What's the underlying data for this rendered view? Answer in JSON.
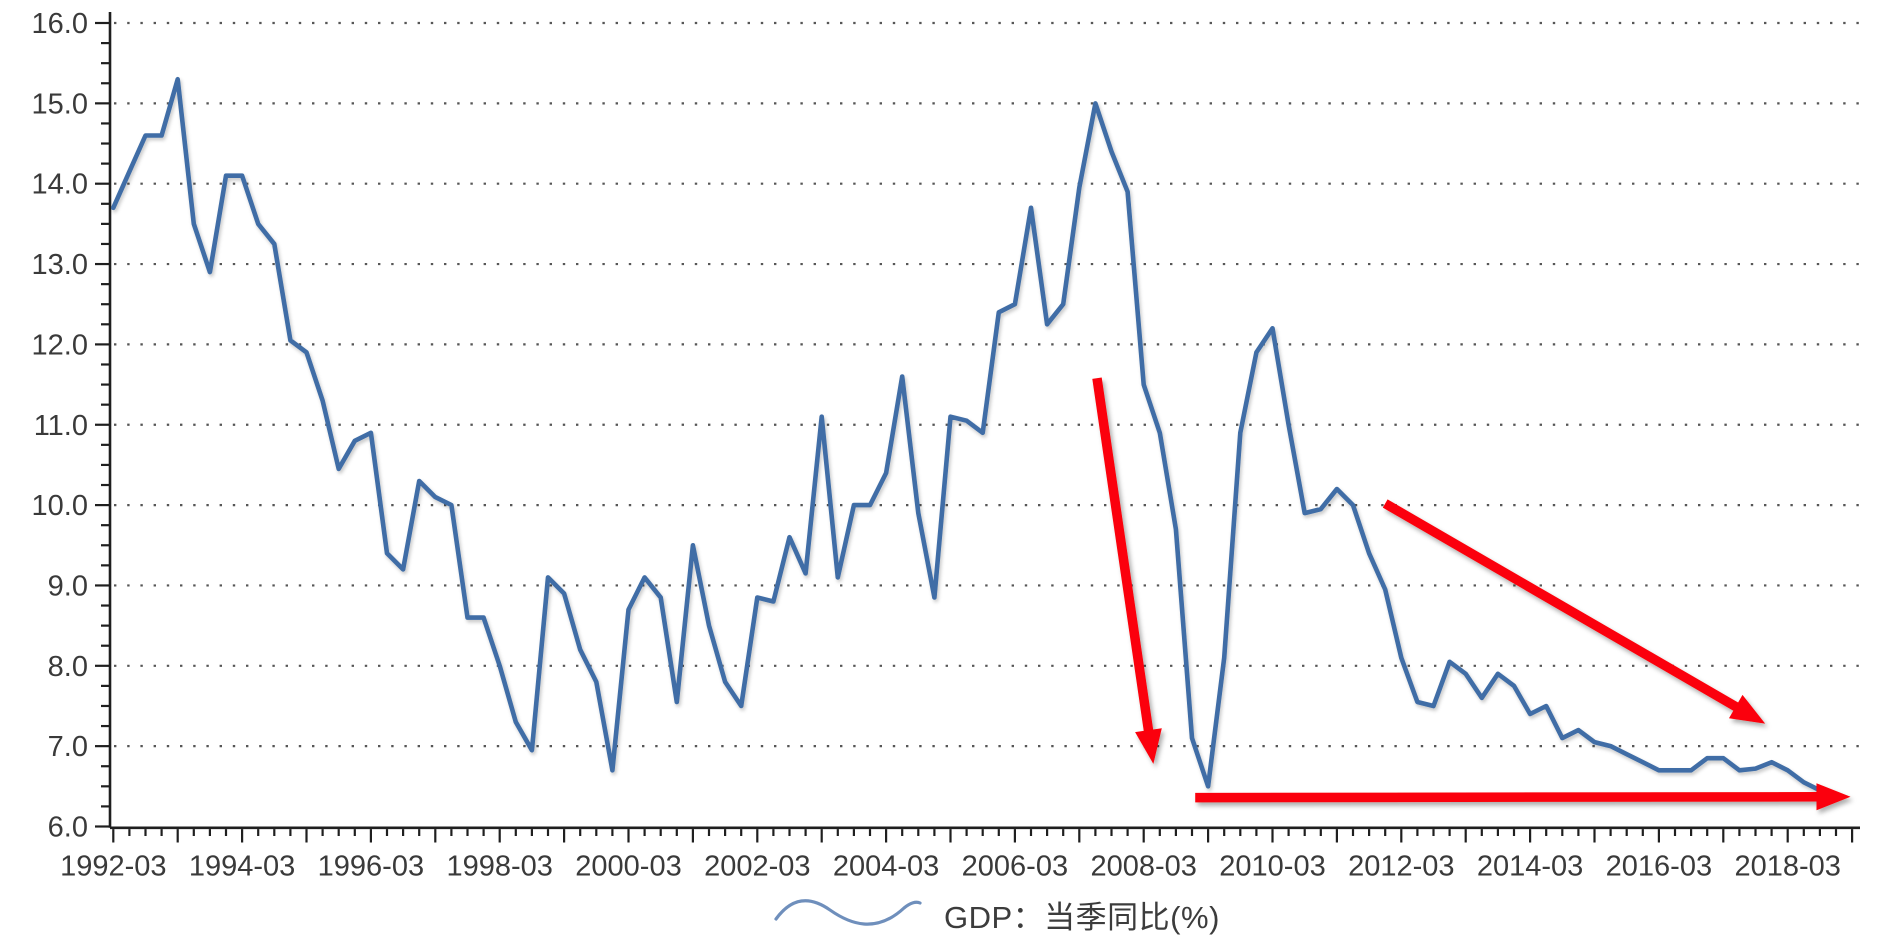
{
  "chart_data": {
    "type": "line",
    "title": "",
    "legend": "GDP：当季同比(%)",
    "series": [
      {
        "name": "GDP：当季同比(%)",
        "start": "1992-03",
        "frequency": "quarterly",
        "values": [
          13.7,
          14.15,
          14.6,
          14.6,
          15.3,
          13.5,
          12.9,
          14.1,
          14.1,
          13.5,
          13.25,
          12.05,
          11.9,
          11.3,
          10.45,
          10.8,
          10.9,
          9.4,
          9.2,
          10.3,
          10.1,
          10.0,
          8.6,
          8.6,
          8.0,
          7.3,
          6.95,
          9.1,
          8.9,
          8.2,
          7.8,
          6.7,
          8.7,
          9.1,
          8.85,
          7.55,
          9.5,
          8.5,
          7.8,
          7.5,
          8.85,
          8.8,
          9.6,
          9.15,
          11.1,
          9.1,
          10.0,
          10.0,
          10.4,
          11.6,
          9.9,
          8.85,
          11.1,
          11.05,
          10.9,
          12.4,
          12.5,
          13.7,
          12.25,
          12.5,
          13.95,
          15.0,
          14.4,
          13.9,
          11.5,
          10.9,
          9.7,
          7.1,
          6.5,
          8.1,
          10.9,
          11.9,
          12.2,
          11.0,
          9.9,
          9.95,
          10.2,
          10.0,
          9.4,
          8.95,
          8.1,
          7.55,
          7.5,
          8.05,
          7.9,
          7.6,
          7.9,
          7.75,
          7.4,
          7.5,
          7.1,
          7.2,
          7.05,
          7.0,
          6.9,
          6.8,
          6.7,
          6.7,
          6.7,
          6.85,
          6.85,
          6.7,
          6.72,
          6.8,
          6.7,
          6.55,
          6.45,
          6.4
        ]
      }
    ],
    "ylim": [
      6.0,
      16.0
    ],
    "ytick_labels": [
      "16.0",
      "15.0",
      "14.0",
      "13.0",
      "12.0",
      "11.0",
      "10.0",
      "9.0",
      "8.0",
      "7.0",
      "6.0"
    ],
    "xtick_labels": [
      "1992-03",
      "1994-03",
      "1996-03",
      "1998-03",
      "2000-03",
      "2002-03",
      "2004-03",
      "2006-03",
      "2008-03",
      "2010-03",
      "2012-03",
      "2014-03",
      "2016-03",
      "2018-03"
    ],
    "grid": "horizontal-dotted",
    "legend_position": "bottom-center",
    "annotations": [
      {
        "kind": "arrow",
        "name": "crash-2008-arrow",
        "from_quarter": 61.1,
        "from_value": 11.58,
        "to_quarter": 64.6,
        "to_value": 6.78
      },
      {
        "kind": "arrow",
        "name": "flat-bottom-arrow",
        "from_quarter": 67.2,
        "from_value": 6.36,
        "to_quarter": 107.9,
        "to_value": 6.37
      },
      {
        "kind": "arrow",
        "name": "slow-decline-arrow",
        "from_quarter": 79.0,
        "from_value": 10.02,
        "to_quarter": 102.6,
        "to_value": 7.28
      }
    ]
  },
  "colors": {
    "series_line": "#3f6da6",
    "legend_icon": "#6f8fbc",
    "arrow": "#fb0007",
    "grid_dots": "#565656",
    "axis": "#1f1f1f",
    "tick_text": "#3a3a3a"
  }
}
